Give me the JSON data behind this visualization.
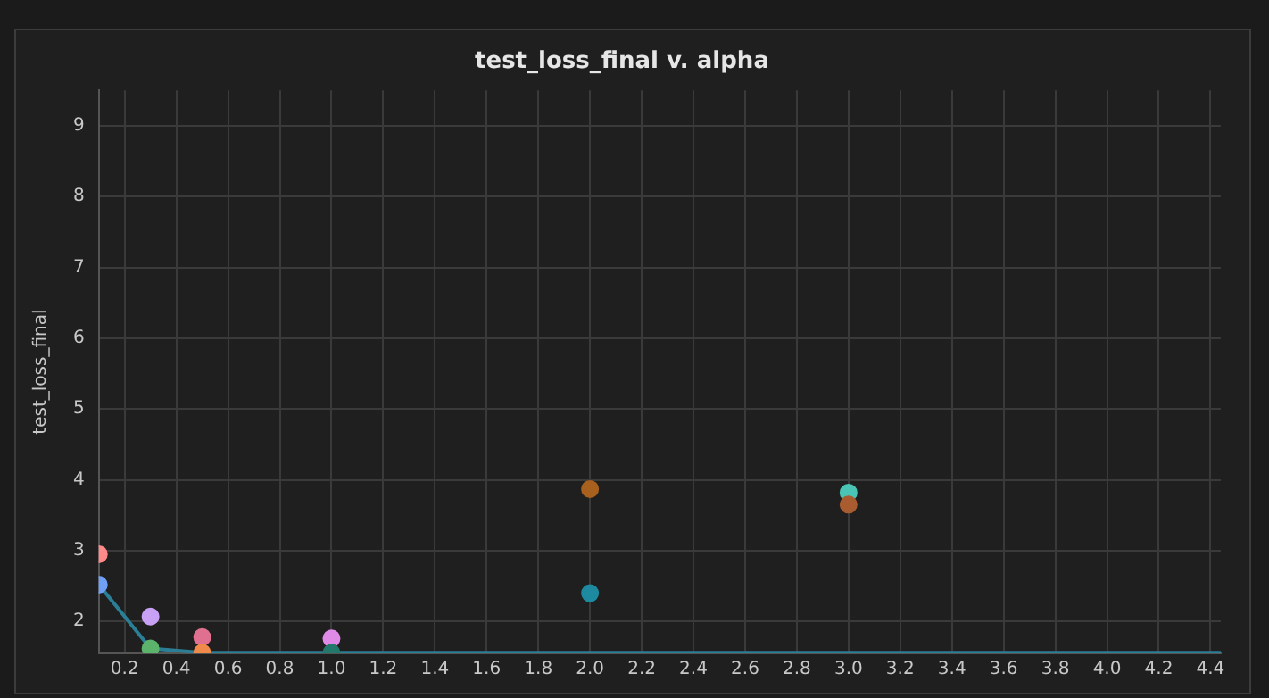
{
  "chart_data": {
    "type": "scatter",
    "title": "test_loss_final v. alpha",
    "ylabel": "test_loss_final",
    "xlim": [
      0.1,
      4.44
    ],
    "xticks": [
      0.2,
      0.4,
      0.6,
      0.8,
      {
        "value": 1,
        "label": "1.0"
      },
      1.2,
      1.4,
      1.6,
      1.8,
      {
        "value": 2,
        "label": "2.0"
      },
      2.2,
      2.4,
      2.6,
      2.8,
      {
        "value": 3,
        "label": "3.0"
      },
      3.2,
      3.4,
      3.6,
      3.8,
      {
        "value": 4,
        "label": "4.0"
      },
      4.2,
      4.4
    ],
    "ylim": [
      1.55,
      9.5
    ],
    "yticks": [
      2,
      3,
      4,
      5,
      6,
      7,
      8,
      9
    ],
    "grid": true,
    "legend": false,
    "marker": "circle",
    "series": [
      {
        "type": "line",
        "color": "#2a7f96",
        "x": [
          0.1,
          0.3,
          0.5,
          4.44
        ],
        "values": [
          2.52,
          1.62,
          1.56,
          1.56
        ],
        "marker": "none"
      },
      {
        "x": [
          0.1,
          0.1,
          0.3,
          0.3,
          0.5,
          0.5,
          1.0,
          1.0,
          2.0,
          2.0,
          3.0,
          3.0
        ],
        "values": [
          2.95,
          2.52,
          2.07,
          1.62,
          1.78,
          1.56,
          1.76,
          1.56,
          3.87,
          2.4,
          3.82,
          3.65
        ],
        "colors": [
          "#ff8a8a",
          "#6fa0f5",
          "#c8a0f5",
          "#5cb46c",
          "#e07090",
          "#f08a4a",
          "#e08ae8",
          "#22786a",
          "#a8601e",
          "#1e8aa0",
          "#4ac4b4",
          "#a85c30"
        ]
      }
    ]
  }
}
